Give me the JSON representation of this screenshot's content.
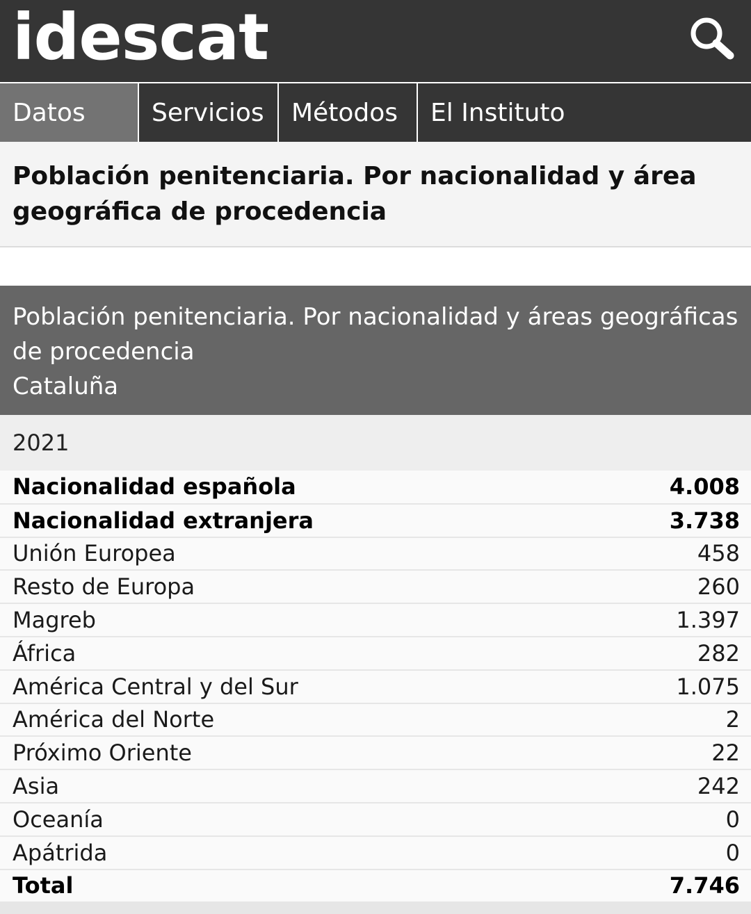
{
  "header": {
    "logo": "idescat",
    "search_icon": "search-icon"
  },
  "nav": {
    "items": [
      {
        "label": "Datos",
        "active": true
      },
      {
        "label": "Servicios"
      },
      {
        "label": "Métodos"
      },
      {
        "label": "El Instituto"
      }
    ]
  },
  "page": {
    "title": "Población penitenciaria. Por nacionalidad y área geográfica de procedencia"
  },
  "table": {
    "caption_line1": "Población penitenciaria. Por nacionalidad y áreas geográficas de procedencia",
    "caption_line2": "Cataluña",
    "year": "2021",
    "rows": [
      {
        "label": "Nacionalidad española",
        "value": "4.008",
        "bold": true
      },
      {
        "label": "Nacionalidad extranjera",
        "value": "3.738",
        "bold": true
      },
      {
        "label": "Unión Europea",
        "value": "458"
      },
      {
        "label": "Resto de Europa",
        "value": "260"
      },
      {
        "label": "Magreb",
        "value": "1.397"
      },
      {
        "label": "África",
        "value": "282"
      },
      {
        "label": "América Central y del Sur",
        "value": "1.075"
      },
      {
        "label": "América del Norte",
        "value": "2"
      },
      {
        "label": "Próximo Oriente",
        "value": "22"
      },
      {
        "label": "Asia",
        "value": "242"
      },
      {
        "label": "Oceanía",
        "value": "0"
      },
      {
        "label": "Apátrida",
        "value": "0"
      },
      {
        "label": "Total",
        "value": "7.746",
        "bold": true
      }
    ]
  }
}
